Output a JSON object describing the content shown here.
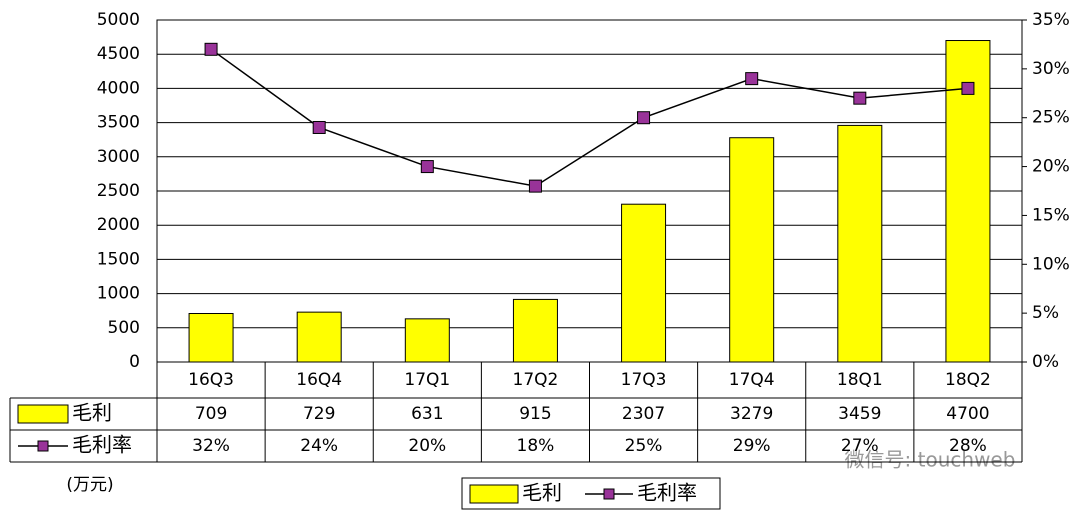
{
  "chart_data": {
    "type": "bar",
    "categories": [
      "16Q3",
      "16Q4",
      "17Q1",
      "17Q2",
      "17Q3",
      "17Q4",
      "18Q1",
      "18Q2"
    ],
    "series": [
      {
        "name": "毛利",
        "type": "bar",
        "color": "#ffff00",
        "values": [
          709,
          729,
          631,
          915,
          2307,
          3279,
          3459,
          4700
        ]
      },
      {
        "name": "毛利率",
        "type": "line",
        "axis": "y2",
        "color": "#993399",
        "values": [
          32,
          24,
          20,
          18,
          25,
          29,
          27,
          28
        ],
        "value_labels": [
          "32%",
          "24%",
          "20%",
          "18%",
          "25%",
          "29%",
          "27%",
          "28%"
        ]
      }
    ],
    "ylim": [
      0,
      5000
    ],
    "yticks": [
      0,
      500,
      1000,
      1500,
      2000,
      2500,
      3000,
      3500,
      4000,
      4500,
      5000
    ],
    "y2lim": [
      0,
      35
    ],
    "y2ticks": [
      {
        "value": 0,
        "label": "0%"
      },
      {
        "value": 5,
        "label": "5%"
      },
      {
        "value": 10,
        "label": "10%"
      },
      {
        "value": 15,
        "label": "15%"
      },
      {
        "value": 20,
        "label": "20%"
      },
      {
        "value": 25,
        "label": "25%"
      },
      {
        "value": 30,
        "label": "30%"
      },
      {
        "value": 35,
        "label": "35%"
      }
    ],
    "unit_label": "(万元)",
    "grid": true
  },
  "watermark": "微信号: touchweb"
}
